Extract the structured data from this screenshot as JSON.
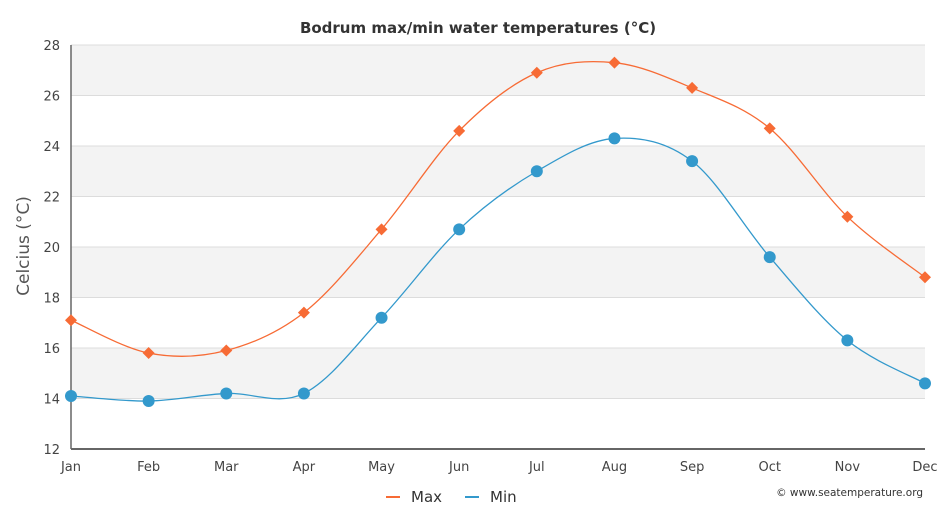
{
  "chart_data": {
    "type": "line",
    "title": "Bodrum max/min water temperatures (°C)",
    "xlabel": "",
    "ylabel": "Celcius (°C)",
    "categories": [
      "Jan",
      "Feb",
      "Mar",
      "Apr",
      "May",
      "Jun",
      "Jul",
      "Aug",
      "Sep",
      "Oct",
      "Nov",
      "Dec"
    ],
    "ylim": [
      12,
      28
    ],
    "yticks": [
      12,
      14,
      16,
      18,
      20,
      22,
      24,
      26,
      28
    ],
    "series": [
      {
        "name": "Max",
        "color": "#f76b35",
        "marker": "diamond",
        "values": [
          17.1,
          15.8,
          15.9,
          17.4,
          20.7,
          24.6,
          26.9,
          27.3,
          26.3,
          24.7,
          21.2,
          18.8
        ]
      },
      {
        "name": "Min",
        "color": "#3399cc",
        "marker": "circle",
        "values": [
          14.1,
          13.9,
          14.2,
          14.2,
          17.2,
          20.7,
          23.0,
          24.3,
          23.4,
          19.6,
          16.3,
          14.6
        ]
      }
    ],
    "legend_position": "bottom-center",
    "band_colors": [
      "#ffffff",
      "#f3f3f3"
    ],
    "credit": "© www.seatemperature.org"
  }
}
